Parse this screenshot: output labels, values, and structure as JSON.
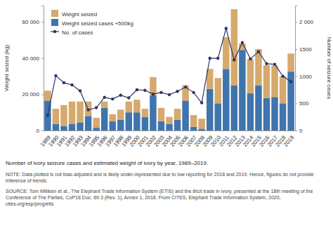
{
  "chart_data": {
    "type": "bar",
    "title": "Number of ivory seizure cases and estimated weight of ivory by year, 1989–2019.",
    "note": "NOTE: Data plotted is not bias-adjusted and is likely under-represented due to low reporting for 2018 and 2019. Hence, figures do not provide inference of trends.",
    "source": "SOURCE: Tom Milliken et al., The Elephant Trade Information System (ETIS) and the illicit trade in ivory, presented at the 18th meeting of the Conference of The Parties, CoP18 Doc. 69.3 (Rev. 1), Annex 1, 2018. From CITES, Elephant Trade Information System, 2020, cites.org/esp/prog/etis",
    "y_label": "Weight seized (kg)",
    "y2_label": "Number of seizure cases",
    "stacked": true,
    "grid": false,
    "legend": "upper left",
    "categories": [
      "1989",
      "1990",
      "1991",
      "1992",
      "1993",
      "1994",
      "1995",
      "1996",
      "1997",
      "1998",
      "1999",
      "2000",
      "2001",
      "2002",
      "2003",
      "2004",
      "2005",
      "2006",
      "2007",
      "2008",
      "2009",
      "2010",
      "2011",
      "2012",
      "2013",
      "2014",
      "2015",
      "2016",
      "2017",
      "2018",
      "2019"
    ],
    "series": [
      {
        "name": "Weight seized cases +500kg",
        "type": "bar",
        "color": "#3f74ad",
        "values": [
          16500,
          3500,
          2500,
          3500,
          4500,
          8000,
          1500,
          12500,
          5000,
          6000,
          10000,
          10000,
          7500,
          19500,
          5000,
          3500,
          6000,
          16500,
          2000,
          1000,
          23000,
          15000,
          34000,
          25000,
          44500,
          20500,
          25000,
          18000,
          18500,
          15000,
          32500
        ]
      },
      {
        "name": "Weight seized",
        "type": "bar",
        "color": "#d6a96c",
        "values": [
          5500,
          8500,
          11500,
          12500,
          11500,
          8000,
          5500,
          3500,
          4000,
          5500,
          6000,
          7000,
          4500,
          10000,
          7500,
          4000,
          6000,
          8500,
          6500,
          5500,
          11000,
          14000,
          17500,
          42000,
          3500,
          19000,
          20000,
          18000,
          17500,
          15000,
          10000
        ]
      },
      {
        "name": "No. of cases",
        "type": "line",
        "axis": "y2",
        "color": "#2b3566",
        "marker": "circle",
        "values": [
          280,
          1010,
          880,
          840,
          730,
          380,
          420,
          610,
          580,
          650,
          600,
          750,
          740,
          670,
          700,
          660,
          720,
          800,
          700,
          510,
          1330,
          1330,
          1880,
          1300,
          1620,
          1320,
          1450,
          1230,
          1220,
          1000,
          900
        ]
      }
    ],
    "ylim": [
      0,
      69000
    ],
    "yticks": [
      0,
      {
        "value": 20000,
        "label": "20 000"
      },
      {
        "value": 40000,
        "label": "40 000"
      },
      {
        "value": 60000,
        "label": "60 000"
      }
    ],
    "y2lim": [
      0,
      2300
    ],
    "y2ticks": [
      0,
      500,
      1000,
      1500,
      {
        "value": 2000,
        "label": "2 000"
      }
    ]
  }
}
